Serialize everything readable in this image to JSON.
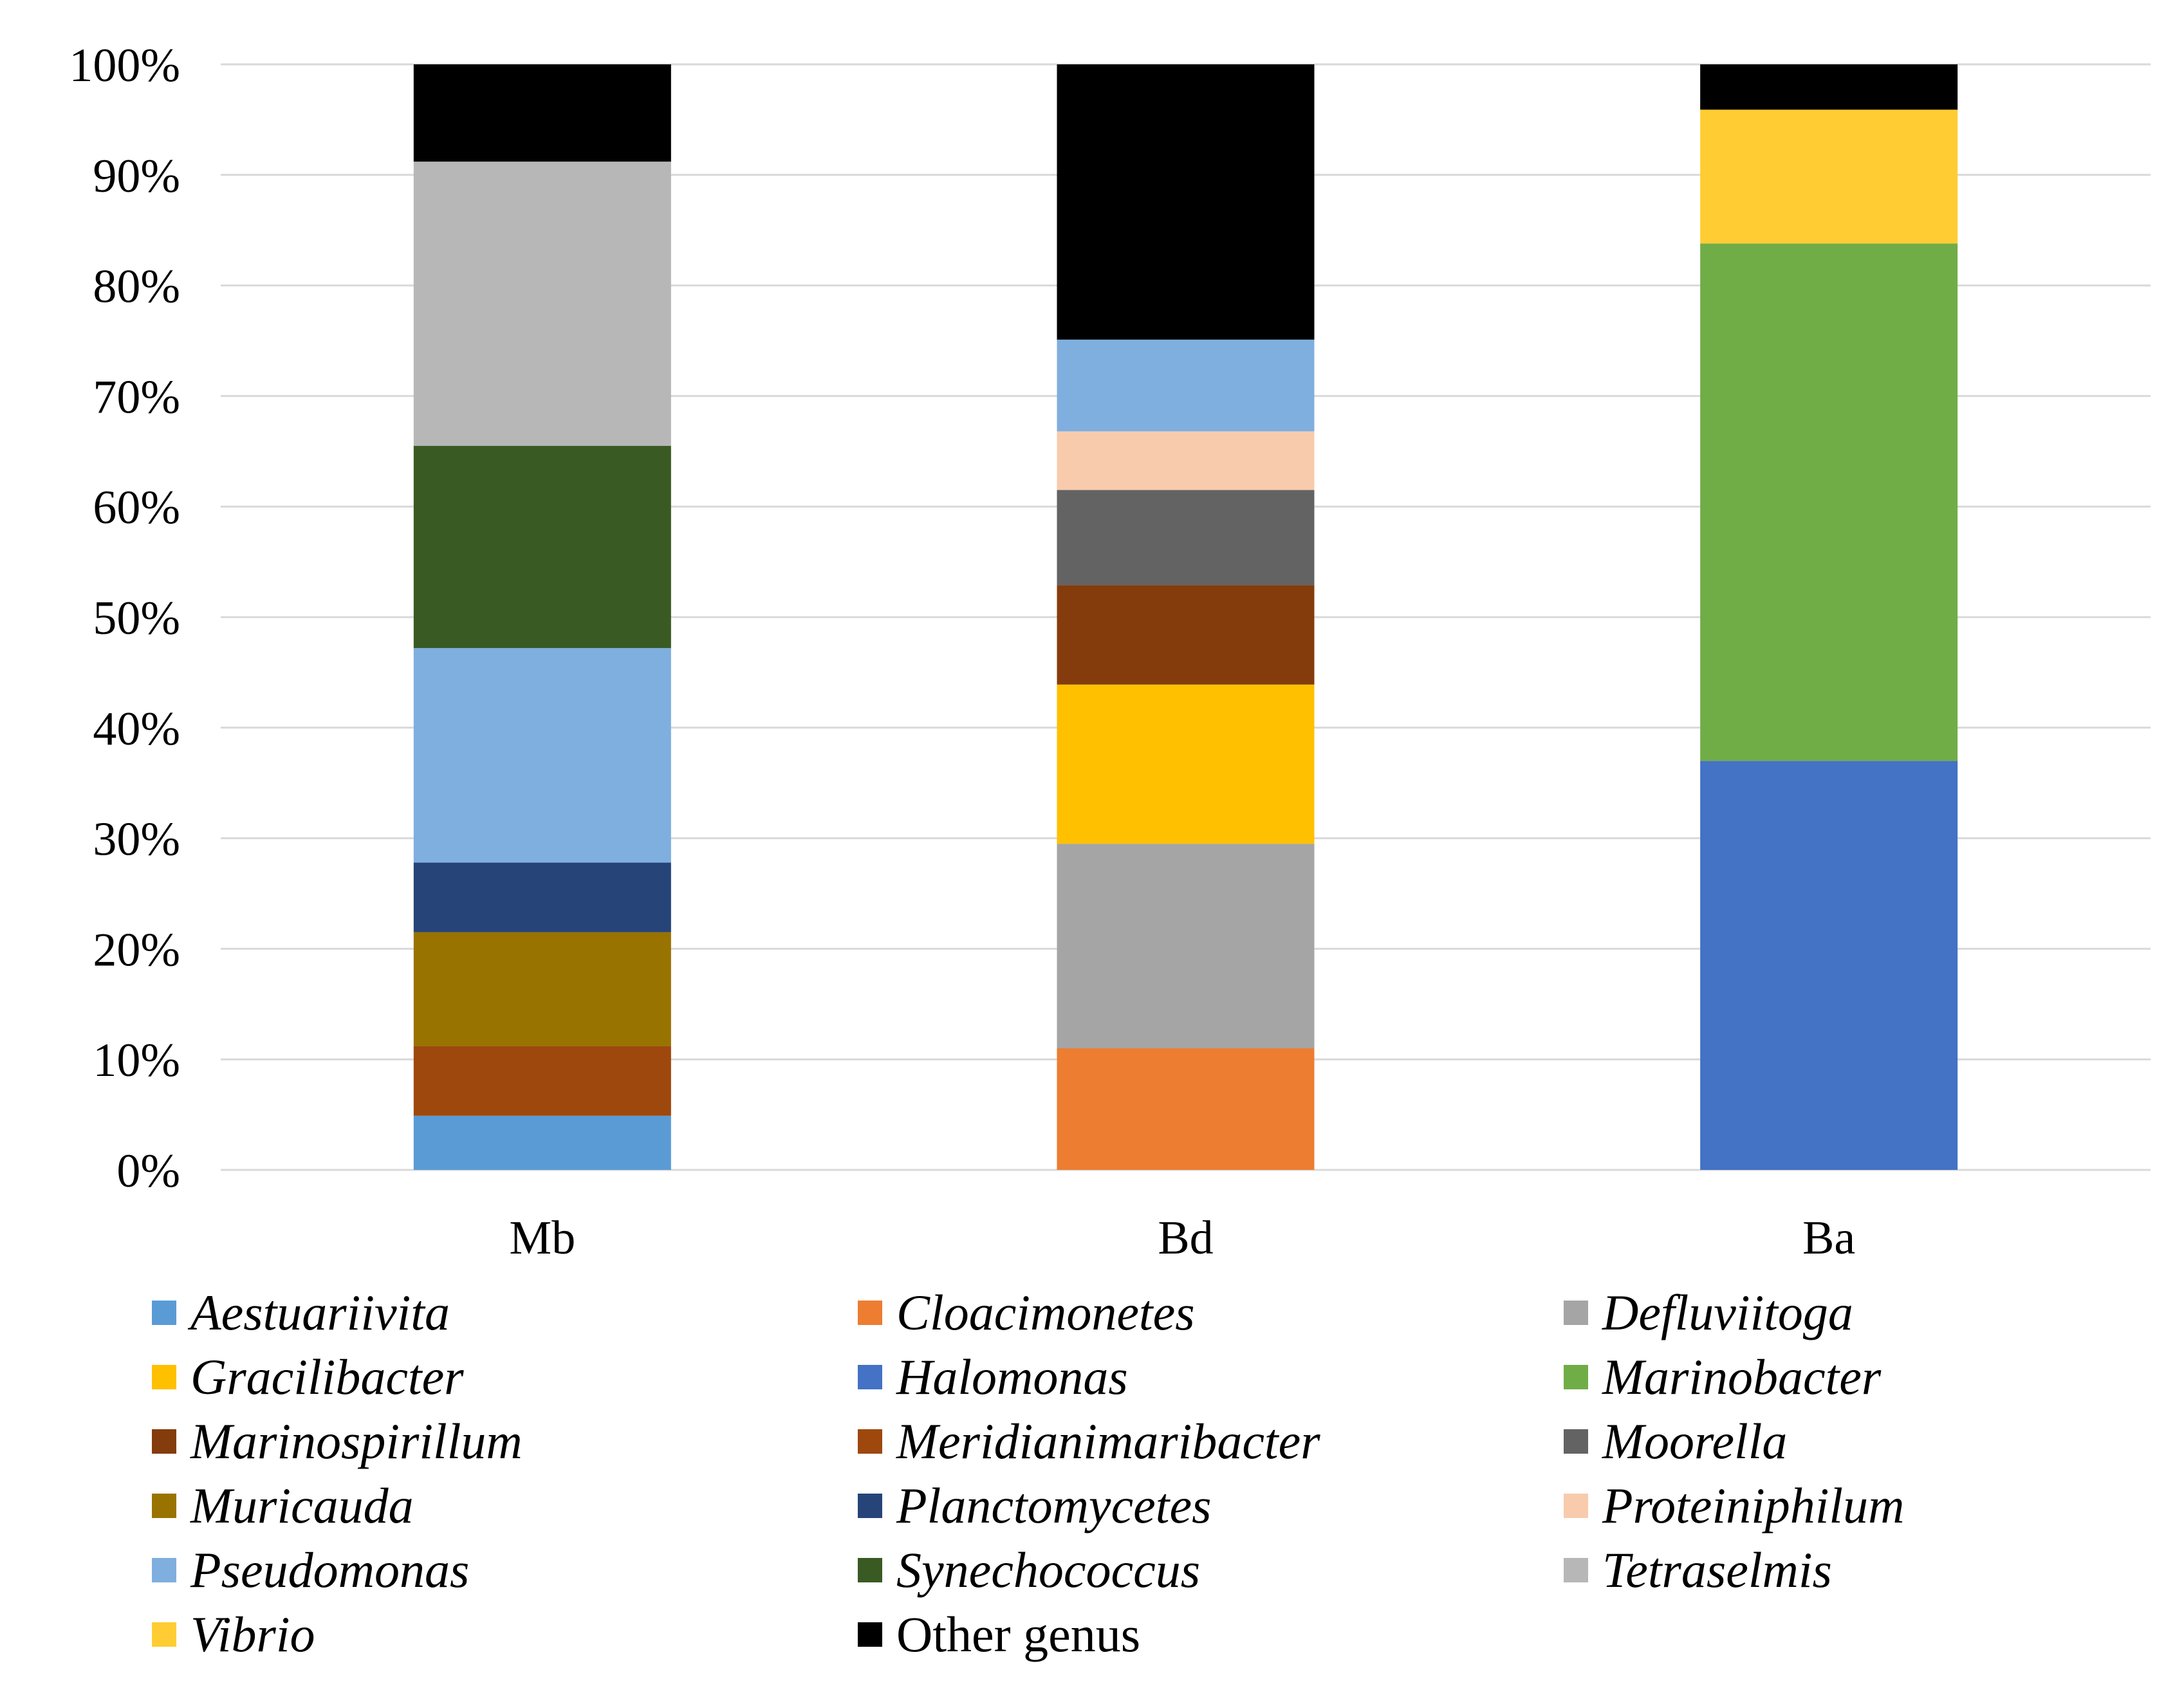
{
  "chart_data": {
    "type": "bar",
    "stacked": true,
    "percent_stacked": true,
    "categories": [
      "Mb",
      "Bd",
      "Ba"
    ],
    "y_ticks": [
      "0%",
      "10%",
      "20%",
      "30%",
      "40%",
      "50%",
      "60%",
      "70%",
      "80%",
      "90%",
      "100%"
    ],
    "ylim": [
      0,
      100
    ],
    "grid": true,
    "legend_position": "bottom",
    "series": [
      {
        "name": "Aestuariivita",
        "color": "#5B9BD5",
        "italic": true,
        "values": [
          4.9,
          0,
          0
        ]
      },
      {
        "name": "Cloacimonetes",
        "color": "#ED7D31",
        "italic": true,
        "values": [
          0,
          11.0,
          0
        ]
      },
      {
        "name": "Defluviitoga",
        "color": "#A5A5A5",
        "italic": true,
        "values": [
          0,
          18.5,
          0
        ]
      },
      {
        "name": "Gracilibacter",
        "color": "#FFC000",
        "italic": true,
        "values": [
          0,
          14.4,
          0
        ]
      },
      {
        "name": "Halomonas",
        "color": "#4472C4",
        "italic": true,
        "values": [
          0,
          0,
          37.0
        ]
      },
      {
        "name": "Marinobacter",
        "color": "#70AD47",
        "italic": true,
        "values": [
          0,
          0,
          46.8
        ]
      },
      {
        "name": "Marinospirillum",
        "color": "#843C0C",
        "italic": true,
        "values": [
          0,
          9.0,
          0
        ]
      },
      {
        "name": "Meridianimaribacter",
        "color": "#9E480E",
        "italic": true,
        "values": [
          6.3,
          0,
          0
        ]
      },
      {
        "name": "Moorella",
        "color": "#636363",
        "italic": true,
        "values": [
          0,
          8.6,
          0
        ]
      },
      {
        "name": "Muricauda",
        "color": "#997300",
        "italic": true,
        "values": [
          10.3,
          0,
          0
        ]
      },
      {
        "name": "Planctomycetes",
        "color": "#264478",
        "italic": true,
        "values": [
          6.3,
          0,
          0
        ]
      },
      {
        "name": "Proteiniphilum",
        "color": "#F8CBAD",
        "italic": true,
        "values": [
          0,
          5.3,
          0
        ]
      },
      {
        "name": "Pseudomonas",
        "color": "#7FAFDF",
        "italic": true,
        "values": [
          19.4,
          8.3,
          0
        ]
      },
      {
        "name": "Synechococcus",
        "color": "#3A5A23",
        "italic": true,
        "values": [
          18.3,
          0,
          0
        ]
      },
      {
        "name": "Tetraselmis",
        "color": "#B7B7B7",
        "italic": true,
        "values": [
          25.7,
          0,
          0
        ]
      },
      {
        "name": "Vibrio",
        "color": "#FFCD33",
        "italic": true,
        "values": [
          0,
          0,
          12.1
        ]
      },
      {
        "name": "Other genus",
        "color": "#000000",
        "italic": false,
        "values": [
          8.8,
          24.9,
          4.1
        ]
      }
    ]
  }
}
